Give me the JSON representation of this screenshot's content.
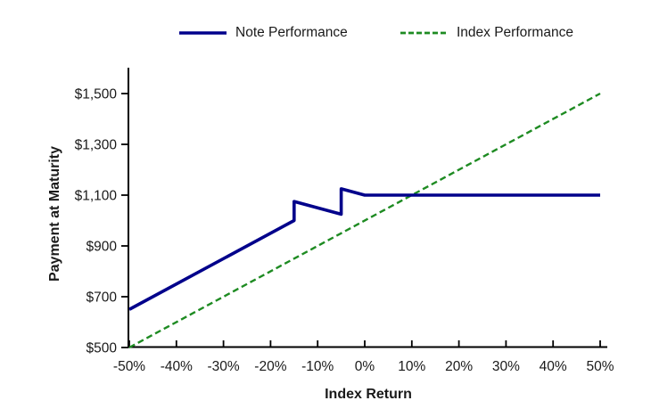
{
  "colors": {
    "axis": "#000000",
    "text": "#1a1a1a",
    "note_line": "#00008B",
    "index_line": "#1E8B22"
  },
  "chart_data": {
    "type": "line",
    "xlabel": "Index Return",
    "ylabel": "Payment at Maturity",
    "xlim": [
      -50,
      50
    ],
    "ylim": [
      500,
      1500
    ],
    "grid": false,
    "legend_position": "top",
    "x_ticks": [
      {
        "value": -50,
        "label": "-50%"
      },
      {
        "value": -40,
        "label": "-40%"
      },
      {
        "value": -30,
        "label": "-30%"
      },
      {
        "value": -20,
        "label": "-20%"
      },
      {
        "value": -10,
        "label": "-10%"
      },
      {
        "value": 0,
        "label": "0%"
      },
      {
        "value": 10,
        "label": "10%"
      },
      {
        "value": 20,
        "label": "20%"
      },
      {
        "value": 30,
        "label": "30%"
      },
      {
        "value": 40,
        "label": "40%"
      },
      {
        "value": 50,
        "label": "50%"
      }
    ],
    "y_ticks": [
      {
        "value": 500,
        "label": "$500"
      },
      {
        "value": 700,
        "label": "$700"
      },
      {
        "value": 900,
        "label": "$900"
      },
      {
        "value": 1100,
        "label": "$1,100"
      },
      {
        "value": 1300,
        "label": "$1,300"
      },
      {
        "value": 1500,
        "label": "$1,500"
      }
    ],
    "series": [
      {
        "name": "Note Performance",
        "line_style": "solid",
        "color": "#00008B",
        "points": [
          [
            -50,
            650
          ],
          [
            -15,
            1000
          ],
          [
            -15,
            1075
          ],
          [
            -5,
            1025
          ],
          [
            -5,
            1125
          ],
          [
            0,
            1100
          ],
          [
            50,
            1100
          ]
        ]
      },
      {
        "name": "Index Performance",
        "line_style": "dashed",
        "color": "#1E8B22",
        "points": [
          [
            -50,
            500
          ],
          [
            50,
            1500
          ]
        ]
      }
    ]
  }
}
